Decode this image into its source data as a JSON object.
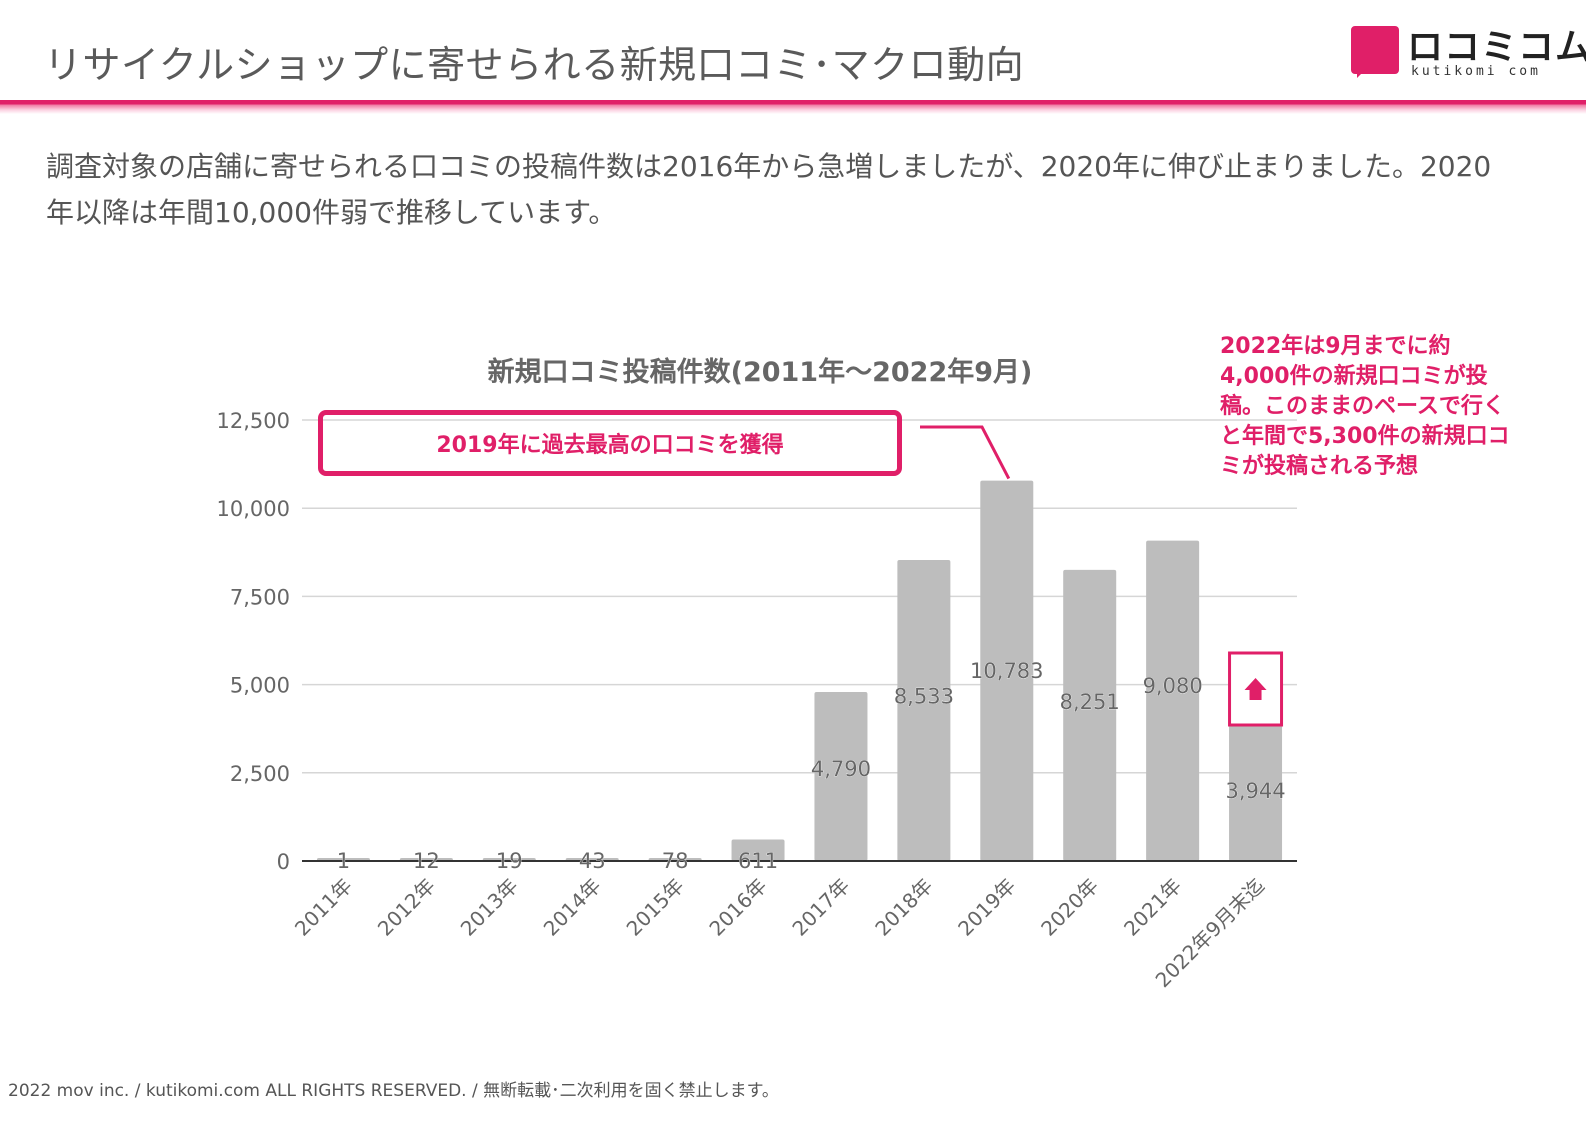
{
  "header": {
    "title": "リサイクルショップに寄せられる新規口コミ･マクロ動向"
  },
  "logo": {
    "name": "ロコミコム",
    "sub": "kutikomi com"
  },
  "intro": {
    "text": "調査対象の店舗に寄せられる口コミの投稿件数は2016年から急増しましたが、2020年に伸び止まりました。2020年以降は年間10,000件弱で推移しています。"
  },
  "callout": {
    "text": "2019年に過去最高の口コミを獲得"
  },
  "note": {
    "text": "2022年は9月までに約4,000件の新規口コミが投稿。このままのペースで行くと年間で5,300件の新規口コミが投稿される予想"
  },
  "footer": {
    "text": "2022 mov inc. / kutikomi.com ALL RIGHTS RESERVED. / 無断転載･二次利用を固く禁止します。"
  },
  "colors": {
    "accent": "#e01f68",
    "bar": "#bdbdbd",
    "grid": "#d6d6d6"
  },
  "chart_data": {
    "type": "bar",
    "title": "新規口コミ投稿件数(2011年〜2022年9月)",
    "xlabel": "",
    "ylabel": "",
    "ylim": [
      0,
      12500
    ],
    "yticks": [
      0,
      2500,
      5000,
      7500,
      10000,
      12500
    ],
    "ytick_labels": [
      "0",
      "2,500",
      "5,000",
      "7,500",
      "10,000",
      "12,500"
    ],
    "categories": [
      "2011年",
      "2012年",
      "2013年",
      "2014年",
      "2015年",
      "2016年",
      "2017年",
      "2018年",
      "2019年",
      "2020年",
      "2021年",
      "2022年9月末迄"
    ],
    "values": [
      1,
      12,
      19,
      43,
      78,
      611,
      4790,
      8533,
      10783,
      8251,
      9080,
      3944
    ],
    "data_labels": [
      "1",
      "12",
      "19",
      "43",
      "78",
      "611",
      "4,790",
      "8,533",
      "10,783",
      "8,251",
      "9,080",
      "3,944"
    ],
    "grid": true,
    "legend": "none"
  }
}
